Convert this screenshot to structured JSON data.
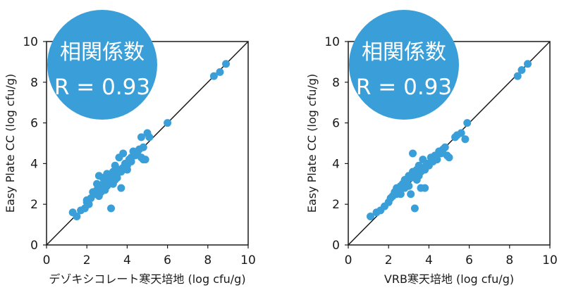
{
  "chart_data": [
    {
      "type": "scatter",
      "xlabel": "デゾキシコレート寒天培地 (log cfu/g)",
      "ylabel": "Easy Plate CC (log cfu/g)",
      "xlim": [
        0,
        10
      ],
      "ylim": [
        0,
        10
      ],
      "xticks": [
        "0",
        "2",
        "4",
        "6",
        "8",
        "10"
      ],
      "yticks": [
        "0",
        "2",
        "4",
        "6",
        "8",
        "10"
      ],
      "reference_line": "y = x",
      "marker_color": "#3a9fd8",
      "badge": {
        "title": "相関係数",
        "value": "R = 0.93",
        "color": "#3a9fd8"
      },
      "points": [
        [
          1.3,
          1.6
        ],
        [
          1.5,
          1.4
        ],
        [
          1.7,
          1.7
        ],
        [
          1.9,
          1.8
        ],
        [
          2.0,
          2.1
        ],
        [
          2.0,
          2.2
        ],
        [
          2.1,
          2.0
        ],
        [
          2.2,
          2.3
        ],
        [
          2.3,
          2.6
        ],
        [
          2.4,
          2.5
        ],
        [
          2.5,
          2.7
        ],
        [
          2.5,
          3.0
        ],
        [
          2.6,
          2.4
        ],
        [
          2.6,
          3.4
        ],
        [
          2.7,
          2.6
        ],
        [
          2.7,
          2.9
        ],
        [
          2.8,
          3.3
        ],
        [
          2.8,
          3.0
        ],
        [
          2.9,
          2.7
        ],
        [
          2.9,
          3.2
        ],
        [
          3.0,
          3.5
        ],
        [
          3.0,
          2.9
        ],
        [
          3.1,
          3.1
        ],
        [
          3.1,
          3.3
        ],
        [
          3.2,
          1.8
        ],
        [
          3.2,
          3.4
        ],
        [
          3.3,
          3.0
        ],
        [
          3.3,
          3.6
        ],
        [
          3.4,
          3.2
        ],
        [
          3.4,
          3.9
        ],
        [
          3.5,
          3.5
        ],
        [
          3.5,
          3.3
        ],
        [
          3.6,
          3.7
        ],
        [
          3.6,
          4.3
        ],
        [
          3.7,
          3.6
        ],
        [
          3.7,
          2.8
        ],
        [
          3.8,
          3.8
        ],
        [
          3.8,
          4.5
        ],
        [
          3.9,
          4.0
        ],
        [
          4.0,
          3.9
        ],
        [
          4.0,
          3.7
        ],
        [
          4.1,
          4.2
        ],
        [
          4.2,
          4.1
        ],
        [
          4.2,
          4.3
        ],
        [
          4.3,
          4.6
        ],
        [
          4.4,
          4.4
        ],
        [
          4.5,
          4.5
        ],
        [
          4.6,
          4.7
        ],
        [
          4.7,
          4.3
        ],
        [
          4.7,
          5.3
        ],
        [
          4.8,
          4.2
        ],
        [
          4.8,
          4.8
        ],
        [
          4.9,
          4.2
        ],
        [
          5.0,
          5.5
        ],
        [
          5.1,
          5.3
        ],
        [
          6.0,
          6.0
        ],
        [
          8.3,
          8.3
        ],
        [
          8.6,
          8.5
        ],
        [
          8.9,
          8.9
        ]
      ]
    },
    {
      "type": "scatter",
      "xlabel": "VRB寒天培地 (log cfu/g)",
      "ylabel": "Easy Plate CC (log cfu/g)",
      "xlim": [
        0,
        10
      ],
      "ylim": [
        0,
        10
      ],
      "xticks": [
        "0",
        "2",
        "4",
        "6",
        "8",
        "10"
      ],
      "yticks": [
        "0",
        "2",
        "4",
        "6",
        "8",
        "10"
      ],
      "reference_line": "y = x",
      "marker_color": "#3a9fd8",
      "badge": {
        "title": "相関係数",
        "value": "R = 0.93",
        "color": "#3a9fd8"
      },
      "points": [
        [
          1.1,
          1.4
        ],
        [
          1.4,
          1.6
        ],
        [
          1.6,
          1.7
        ],
        [
          1.8,
          1.9
        ],
        [
          2.0,
          2.1
        ],
        [
          2.1,
          2.3
        ],
        [
          2.2,
          2.4
        ],
        [
          2.3,
          2.6
        ],
        [
          2.4,
          2.8
        ],
        [
          2.4,
          2.5
        ],
        [
          2.5,
          2.7
        ],
        [
          2.6,
          2.9
        ],
        [
          2.6,
          2.5
        ],
        [
          2.7,
          3.0
        ],
        [
          2.8,
          2.8
        ],
        [
          2.8,
          3.2
        ],
        [
          2.9,
          3.1
        ],
        [
          3.0,
          3.4
        ],
        [
          3.0,
          2.9
        ],
        [
          3.1,
          3.3
        ],
        [
          3.1,
          2.5
        ],
        [
          3.2,
          3.6
        ],
        [
          3.2,
          4.5
        ],
        [
          3.3,
          1.8
        ],
        [
          3.3,
          3.5
        ],
        [
          3.4,
          3.2
        ],
        [
          3.4,
          3.7
        ],
        [
          3.5,
          3.9
        ],
        [
          3.5,
          3.4
        ],
        [
          3.6,
          3.6
        ],
        [
          3.6,
          2.8
        ],
        [
          3.7,
          3.8
        ],
        [
          3.7,
          4.2
        ],
        [
          3.8,
          2.8
        ],
        [
          3.8,
          3.7
        ],
        [
          3.9,
          4.0
        ],
        [
          4.0,
          3.9
        ],
        [
          4.1,
          4.3
        ],
        [
          4.2,
          4.1
        ],
        [
          4.3,
          4.4
        ],
        [
          4.4,
          4.2
        ],
        [
          4.5,
          4.6
        ],
        [
          4.6,
          4.5
        ],
        [
          4.7,
          4.7
        ],
        [
          4.8,
          4.8
        ],
        [
          4.9,
          4.4
        ],
        [
          5.0,
          4.3
        ],
        [
          5.3,
          5.3
        ],
        [
          5.4,
          5.4
        ],
        [
          5.6,
          5.5
        ],
        [
          5.8,
          5.2
        ],
        [
          5.9,
          6.0
        ],
        [
          8.4,
          8.3
        ],
        [
          8.6,
          8.6
        ],
        [
          8.9,
          8.9
        ]
      ]
    }
  ]
}
